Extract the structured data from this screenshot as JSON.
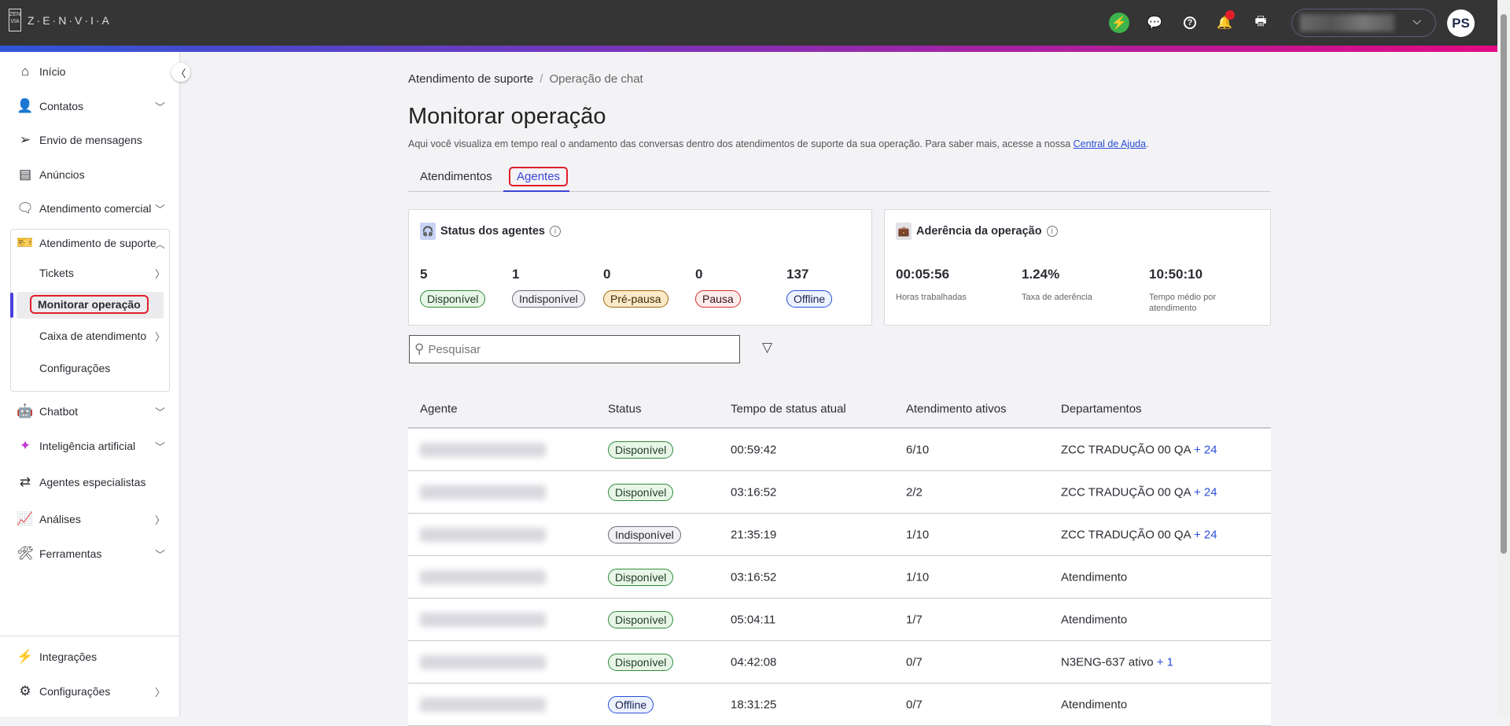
{
  "header": {
    "logo_text": "Z·E·N·V·I·A",
    "logo_mark": "ZEN VIA",
    "avatar_initials": "PS",
    "notification_dot_color": "#e01f2b",
    "icons": [
      "lightning-icon",
      "chat-bubbles-icon",
      "help-icon",
      "bell-icon",
      "printer-icon"
    ]
  },
  "sidebar": {
    "items": [
      {
        "label": "Início",
        "icon": "home-icon"
      },
      {
        "label": "Contatos",
        "icon": "user-icon",
        "chevron": "down"
      },
      {
        "label": "Envio de mensagens",
        "icon": "send-icon"
      },
      {
        "label": "Anúncios",
        "icon": "document-icon"
      },
      {
        "label": "Atendimento comercial",
        "icon": "chat-icon",
        "chevron": "down"
      },
      {
        "label": "Atendimento de suporte",
        "icon": "ticket-icon",
        "chevron": "up"
      },
      {
        "label": "Chatbot",
        "icon": "robot-icon",
        "chevron": "down"
      },
      {
        "label": "Inteligência artificial",
        "icon": "sparkles-icon",
        "chevron": "down"
      },
      {
        "label": "Agentes especialistas",
        "icon": "workflow-icon"
      },
      {
        "label": "Análises",
        "icon": "chart-icon",
        "chevron": "right"
      },
      {
        "label": "Ferramentas",
        "icon": "tools-icon",
        "chevron": "down"
      }
    ],
    "subitems": [
      {
        "label": "Tickets",
        "chevron": "right"
      },
      {
        "label": "Monitorar operação",
        "active": true
      },
      {
        "label": "Caixa de atendimento",
        "chevron": "right"
      },
      {
        "label": "Configurações"
      }
    ],
    "bottom": [
      {
        "label": "Integrações",
        "icon": "lightning-icon"
      },
      {
        "label": "Configurações",
        "icon": "gear-icon",
        "chevron": "right"
      }
    ],
    "accent": "#4a3ee0"
  },
  "breadcrumb": {
    "parent": "Atendimento de suporte",
    "separator": "/",
    "current": "Operação de chat"
  },
  "page": {
    "title": "Monitorar operação",
    "description": "Aqui você visualiza em tempo real o andamento das conversas dentro dos atendimentos de suporte da sua operação. Para saber mais, acesse a nossa ",
    "help_link": "Central de Ajuda",
    "period": "."
  },
  "tabs": [
    {
      "label": "Atendimentos"
    },
    {
      "label": "Agentes",
      "selected": true
    }
  ],
  "status_card": {
    "title": "Status dos agentes",
    "stats": [
      {
        "count": "5",
        "label": "Disponível"
      },
      {
        "count": "1",
        "label": "Indisponível"
      },
      {
        "count": "0",
        "label": "Pré-pausa"
      },
      {
        "count": "0",
        "label": "Pausa"
      },
      {
        "count": "137",
        "label": "Offline"
      }
    ]
  },
  "adherence_card": {
    "title": "Aderência da operação",
    "metrics": [
      {
        "value": "00:05:56",
        "label": "Horas trabalhadas"
      },
      {
        "value": "1.24%",
        "label": "Taxa de aderência"
      },
      {
        "value": "10:50:10",
        "label": "Tempo médio por atendimento"
      }
    ]
  },
  "search": {
    "placeholder": "Pesquisar"
  },
  "table": {
    "columns": [
      "Agente",
      "Status",
      "Tempo de status atual",
      "Atendimento ativos",
      "Departamentos"
    ],
    "rows": [
      {
        "status": "Disponível",
        "time": "00:59:42",
        "active": "6/10",
        "dept": "ZCC TRADUÇÃO 00 QA",
        "more": "+ 24"
      },
      {
        "status": "Disponível",
        "time": "03:16:52",
        "active": "2/2",
        "dept": "ZCC TRADUÇÃO 00 QA",
        "more": "+ 24"
      },
      {
        "status": "Indisponível",
        "time": "21:35:19",
        "active": "1/10",
        "dept": "ZCC TRADUÇÃO 00 QA",
        "more": "+ 24"
      },
      {
        "status": "Disponível",
        "time": "03:16:52",
        "active": "1/10",
        "dept": "Atendimento",
        "more": ""
      },
      {
        "status": "Disponível",
        "time": "05:04:11",
        "active": "1/7",
        "dept": "Atendimento",
        "more": ""
      },
      {
        "status": "Disponível",
        "time": "04:42:08",
        "active": "0/7",
        "dept": "N3ENG-637 ativo",
        "more": "+ 1"
      },
      {
        "status": "Offline",
        "time": "18:31:25",
        "active": "0/7",
        "dept": "Atendimento",
        "more": ""
      }
    ]
  }
}
